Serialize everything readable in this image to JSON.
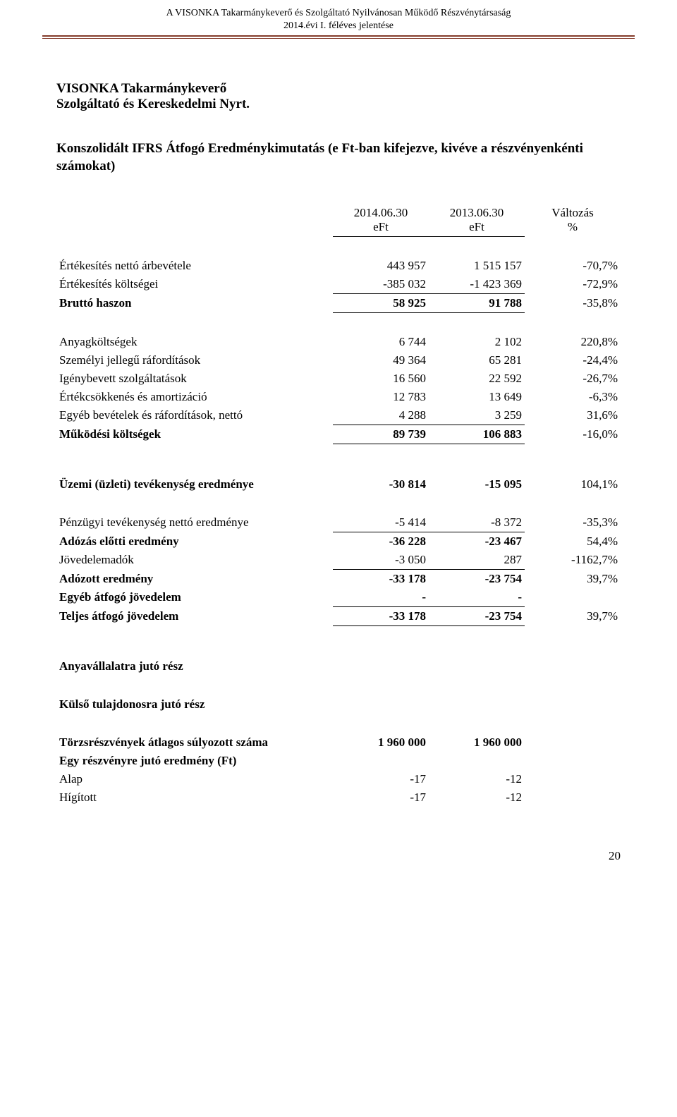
{
  "header": {
    "line1": "A VISONKA Takarmánykeverő és Szolgáltató Nyilvánosan Működő Részvénytársaság",
    "line2": "2014.évi I. féléves jelentése"
  },
  "company": {
    "line1": "VISONKA Takarmánykeverő",
    "line2": "Szolgáltató és Kereskedelmi Nyrt."
  },
  "subtitle": "Konszolidált IFRS Átfogó Eredménykimutatás (e Ft-ban kifejezve, kivéve a részvényenkénti számokat)",
  "columns": {
    "c1_date": "2014.06.30",
    "c1_unit": "eFt",
    "c2_date": "2013.06.30",
    "c2_unit": "eFt",
    "c3_label": "Változás",
    "c3_unit": "%"
  },
  "rows": {
    "sales_net": {
      "label": "Értékesítés nettó árbevétele",
      "v1": "443 957",
      "v2": "1 515 157",
      "pct": "-70,7%"
    },
    "sales_cost": {
      "label": "Értékesítés költségei",
      "v1": "-385 032",
      "v2": "-1 423 369",
      "pct": "-72,9%"
    },
    "gross_profit": {
      "label": "Bruttó haszon",
      "v1": "58 925",
      "v2": "91 788",
      "pct": "-35,8%"
    },
    "material": {
      "label": "Anyagköltségek",
      "v1": "6 744",
      "v2": "2 102",
      "pct": "220,8%"
    },
    "personnel": {
      "label": "Személyi jellegű ráfordítások",
      "v1": "49 364",
      "v2": "65 281",
      "pct": "-24,4%"
    },
    "services": {
      "label": "Igénybevett szolgáltatások",
      "v1": "16 560",
      "v2": "22 592",
      "pct": "-26,7%"
    },
    "depreciation": {
      "label": "Értékcsökkenés és amortizáció",
      "v1": "12 783",
      "v2": "13 649",
      "pct": "-6,3%"
    },
    "other_net": {
      "label": "Egyéb bevételek és ráfordítások, nettó",
      "v1": "4 288",
      "v2": "3 259",
      "pct": "31,6%"
    },
    "op_costs": {
      "label": "Működési költségek",
      "v1": "89 739",
      "v2": "106 883",
      "pct": "-16,0%"
    },
    "op_result": {
      "label": "Üzemi (üzleti) tevékenység eredménye",
      "v1": "-30 814",
      "v2": "-15 095",
      "pct": "104,1%"
    },
    "fin_result": {
      "label": "Pénzügyi tevékenység nettó eredménye",
      "v1": "-5 414",
      "v2": "-8 372",
      "pct": "-35,3%"
    },
    "pretax": {
      "label": "Adózás előtti eredmény",
      "v1": "-36 228",
      "v2": "-23 467",
      "pct": "54,4%"
    },
    "income_tax": {
      "label": "Jövedelemadók",
      "v1": "-3 050",
      "v2": "287",
      "pct": "-1162,7%"
    },
    "after_tax": {
      "label": "Adózott eredmény",
      "v1": "-33 178",
      "v2": "-23 754",
      "pct": "39,7%"
    },
    "other_comp": {
      "label": "Egyéb átfogó jövedelem",
      "v1": "-",
      "v2": "-",
      "pct": ""
    },
    "total_comp": {
      "label": "Teljes átfogó jövedelem",
      "v1": "-33 178",
      "v2": "-23 754",
      "pct": "39,7%"
    }
  },
  "footer_sections": {
    "parent_share": {
      "label": "Anyavállalatra jutó rész"
    },
    "external_share": {
      "label": "Külső tulajdonosra jutó rész"
    },
    "avg_shares": {
      "label": "Törzsrészvények átlagos súlyozott száma",
      "v1": "1 960 000",
      "v2": "1 960 000"
    },
    "eps_heading": {
      "label": "Egy részvényre jutó eredmény (Ft)"
    },
    "basic": {
      "label": "Alap",
      "v1": "-17",
      "v2": "-12"
    },
    "diluted": {
      "label": "Hígított",
      "v1": "-17",
      "v2": "-12"
    }
  },
  "page_number": "20"
}
